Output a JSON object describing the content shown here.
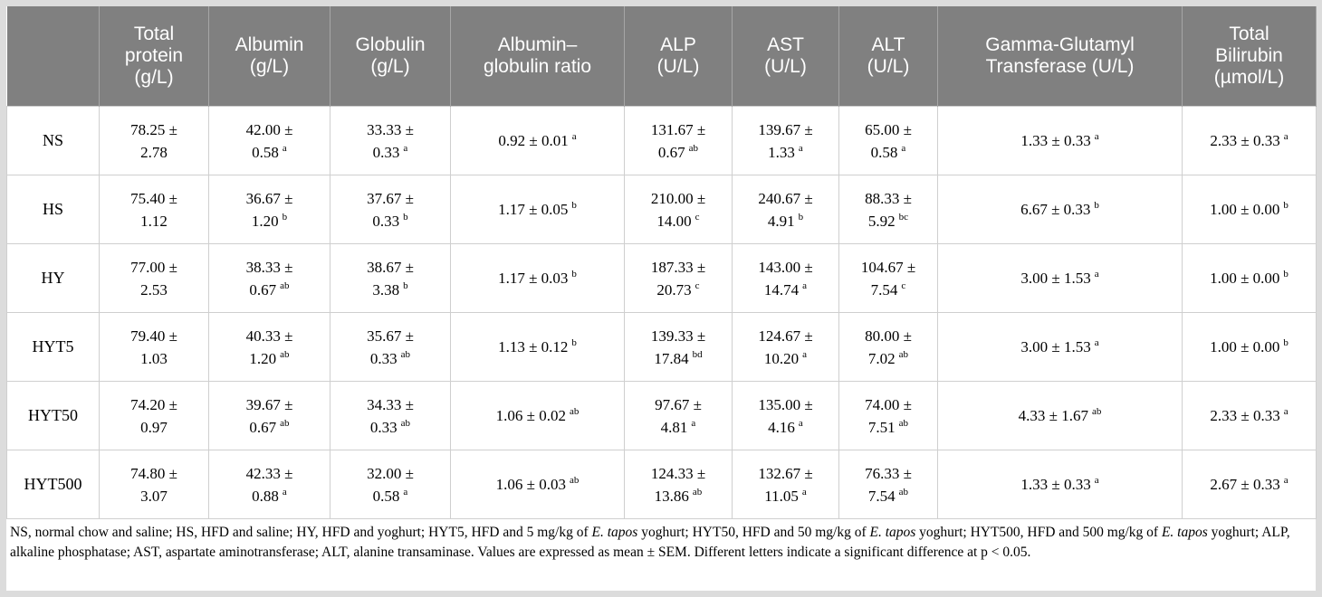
{
  "table": {
    "header": [
      [
        "Total",
        "protein",
        "(g/L)"
      ],
      [
        "Albumin",
        "(g/L)"
      ],
      [
        "Globulin",
        "(g/L)"
      ],
      [
        "Albumin–",
        "globulin ratio"
      ],
      [
        "ALP",
        "(U/L)"
      ],
      [
        "AST",
        "(U/L)"
      ],
      [
        "ALT",
        "(U/L)"
      ],
      [
        "Gamma-Glutamyl",
        "Transferase (U/L)"
      ],
      [
        "Total",
        "Bilirubin",
        "(µmol/L)"
      ]
    ],
    "rows": [
      {
        "label": "NS",
        "cells": [
          {
            "lines": [
              "78.25 ±",
              "2.78"
            ]
          },
          {
            "lines": [
              "42.00 ±",
              "0.58"
            ],
            "sup": "a"
          },
          {
            "lines": [
              "33.33 ±",
              "0.33"
            ],
            "sup": "a"
          },
          {
            "lines": [
              "0.92 ± 0.01"
            ],
            "sup": "a"
          },
          {
            "lines": [
              "131.67 ±",
              "0.67"
            ],
            "sup": "ab"
          },
          {
            "lines": [
              "139.67 ±",
              "1.33"
            ],
            "sup": "a"
          },
          {
            "lines": [
              "65.00 ±",
              "0.58"
            ],
            "sup": "a"
          },
          {
            "lines": [
              "1.33 ± 0.33"
            ],
            "sup": "a"
          },
          {
            "lines": [
              "2.33 ± 0.33"
            ],
            "sup": "a"
          }
        ]
      },
      {
        "label": "HS",
        "cells": [
          {
            "lines": [
              "75.40 ±",
              "1.12"
            ]
          },
          {
            "lines": [
              "36.67 ±",
              "1.20"
            ],
            "sup": "b"
          },
          {
            "lines": [
              "37.67 ±",
              "0.33"
            ],
            "sup": "b"
          },
          {
            "lines": [
              "1.17 ± 0.05"
            ],
            "sup": "b"
          },
          {
            "lines": [
              "210.00 ±",
              "14.00"
            ],
            "sup": "c"
          },
          {
            "lines": [
              "240.67 ±",
              "4.91"
            ],
            "sup": "b"
          },
          {
            "lines": [
              "88.33 ±",
              "5.92"
            ],
            "sup": "bc"
          },
          {
            "lines": [
              "6.67 ± 0.33"
            ],
            "sup": "b"
          },
          {
            "lines": [
              "1.00 ± 0.00"
            ],
            "sup": "b"
          }
        ]
      },
      {
        "label": "HY",
        "cells": [
          {
            "lines": [
              "77.00 ±",
              "2.53"
            ]
          },
          {
            "lines": [
              "38.33 ±",
              "0.67"
            ],
            "sup": "ab"
          },
          {
            "lines": [
              "38.67 ±",
              "3.38"
            ],
            "sup": "b"
          },
          {
            "lines": [
              "1.17 ± 0.03"
            ],
            "sup": "b"
          },
          {
            "lines": [
              "187.33 ±",
              "20.73"
            ],
            "sup": "c"
          },
          {
            "lines": [
              "143.00 ±",
              "14.74"
            ],
            "sup": "a"
          },
          {
            "lines": [
              "104.67 ±",
              "7.54"
            ],
            "sup": "c"
          },
          {
            "lines": [
              "3.00 ± 1.53"
            ],
            "sup": "a"
          },
          {
            "lines": [
              "1.00 ± 0.00"
            ],
            "sup": "b"
          }
        ]
      },
      {
        "label": "HYT5",
        "cells": [
          {
            "lines": [
              "79.40 ±",
              "1.03"
            ]
          },
          {
            "lines": [
              "40.33 ±",
              "1.20"
            ],
            "sup": "ab"
          },
          {
            "lines": [
              "35.67 ±",
              "0.33"
            ],
            "sup": "ab"
          },
          {
            "lines": [
              "1.13 ± 0.12"
            ],
            "sup": "b"
          },
          {
            "lines": [
              "139.33 ±",
              "17.84"
            ],
            "sup": "bd"
          },
          {
            "lines": [
              "124.67 ±",
              "10.20"
            ],
            "sup": "a"
          },
          {
            "lines": [
              "80.00 ±",
              "7.02"
            ],
            "sup": "ab"
          },
          {
            "lines": [
              "3.00 ± 1.53"
            ],
            "sup": "a"
          },
          {
            "lines": [
              "1.00 ± 0.00"
            ],
            "sup": "b"
          }
        ]
      },
      {
        "label": "HYT50",
        "cells": [
          {
            "lines": [
              "74.20 ±",
              "0.97"
            ]
          },
          {
            "lines": [
              "39.67 ±",
              "0.67"
            ],
            "sup": "ab"
          },
          {
            "lines": [
              "34.33 ±",
              "0.33"
            ],
            "sup": "ab"
          },
          {
            "lines": [
              "1.06 ± 0.02"
            ],
            "sup": "ab"
          },
          {
            "lines": [
              "97.67 ±",
              "4.81"
            ],
            "sup": "a"
          },
          {
            "lines": [
              "135.00 ±",
              "4.16"
            ],
            "sup": "a"
          },
          {
            "lines": [
              "74.00 ±",
              "7.51"
            ],
            "sup": "ab"
          },
          {
            "lines": [
              "4.33 ± 1.67"
            ],
            "sup": "ab"
          },
          {
            "lines": [
              "2.33 ± 0.33"
            ],
            "sup": "a"
          }
        ]
      },
      {
        "label": "HYT500",
        "cells": [
          {
            "lines": [
              "74.80 ±",
              "3.07"
            ]
          },
          {
            "lines": [
              "42.33 ±",
              "0.88"
            ],
            "sup": "a"
          },
          {
            "lines": [
              "32.00 ±",
              "0.58"
            ],
            "sup": "a"
          },
          {
            "lines": [
              "1.06 ± 0.03"
            ],
            "sup": "ab"
          },
          {
            "lines": [
              "124.33 ±",
              "13.86"
            ],
            "sup": "ab"
          },
          {
            "lines": [
              "132.67 ±",
              "11.05"
            ],
            "sup": "a"
          },
          {
            "lines": [
              "76.33 ±",
              "7.54"
            ],
            "sup": "ab"
          },
          {
            "lines": [
              "1.33 ± 0.33"
            ],
            "sup": "a"
          },
          {
            "lines": [
              "2.67 ± 0.33"
            ],
            "sup": "a"
          }
        ]
      }
    ],
    "footnote": [
      "NS, normal chow and saline; HS, HFD and saline; HY, HFD and yoghurt; HYT5, HFD and 5 mg/kg of ",
      "E. tapos",
      " yoghurt; HYT50, HFD and 50 mg/kg of ",
      "E. tapos",
      " yoghurt; HYT500, HFD and 500 mg/kg of ",
      "E. tapos",
      " yoghurt; ALP, alkaline phosphatase; AST, aspartate aminotransferase; ALT, alanine transaminase. Values are expressed as mean ± SEM. Different letters indicate a significant difference at p < 0.05."
    ]
  }
}
